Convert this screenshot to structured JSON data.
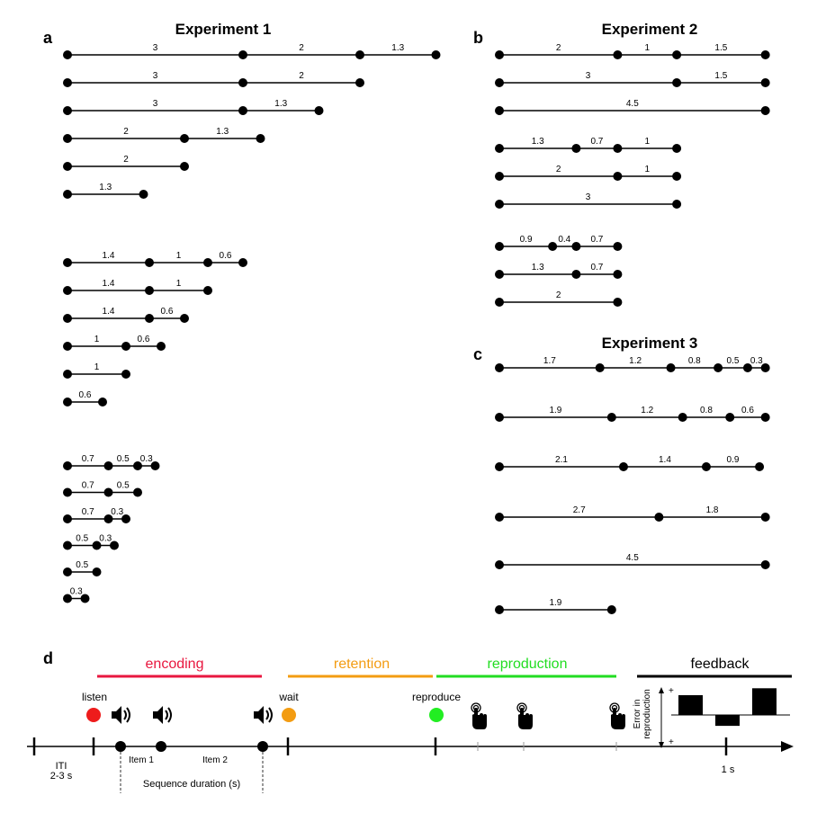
{
  "panels": {
    "a": {
      "letter": "a",
      "title": "Experiment 1",
      "x0": 75,
      "scale": 65,
      "groups": [
        [
          [
            3,
            2,
            1.3
          ],
          [
            3,
            2
          ],
          [
            3,
            1.3
          ],
          [
            2,
            1.3
          ],
          [
            2
          ],
          [
            1.3
          ]
        ],
        [
          [
            1.4,
            1,
            0.6
          ],
          [
            1.4,
            1
          ],
          [
            1.4,
            0.6
          ],
          [
            1,
            0.6
          ],
          [
            1
          ],
          [
            0.6
          ]
        ],
        [
          [
            0.7,
            0.5,
            0.3
          ],
          [
            0.7,
            0.5
          ],
          [
            0.7,
            0.3
          ],
          [
            0.5,
            0.3
          ],
          [
            0.5
          ],
          [
            0.3
          ]
        ]
      ]
    },
    "b": {
      "letter": "b",
      "title": "Experiment 2",
      "groups": [
        [
          [
            2,
            1,
            1.5
          ],
          [
            3,
            1.5
          ],
          [
            4.5
          ]
        ],
        [
          [
            1.3,
            0.7,
            1
          ],
          [
            2,
            1
          ],
          [
            3
          ]
        ],
        [
          [
            0.9,
            0.4,
            0.7
          ],
          [
            1.3,
            0.7
          ],
          [
            2
          ]
        ]
      ]
    },
    "c": {
      "letter": "c",
      "title": "Experiment 3",
      "sequences": [
        [
          1.7,
          1.2,
          0.8,
          0.5,
          0.3
        ],
        [
          1.9,
          1.2,
          0.8,
          0.6
        ],
        [
          2.1,
          1.4,
          0.9
        ],
        [
          2.7,
          1.8
        ],
        [
          4.5
        ],
        [
          1.9
        ]
      ]
    }
  },
  "timeline": {
    "letter": "d",
    "phases": {
      "encoding": "encoding",
      "retention": "retention",
      "reproduction": "reproduction",
      "feedback": "feedback"
    },
    "cues": {
      "listen": "listen",
      "wait": "wait",
      "reproduce": "reproduce"
    },
    "labels": {
      "iti_line1": "ITI",
      "iti_line2": "2-3 s",
      "item1": "Item 1",
      "item2": "Item 2",
      "sequence_duration": "Sequence duration (s)",
      "one_second": "1 s",
      "error_line1": "Error in",
      "error_line2": "reproduction",
      "plus_top": "+",
      "plus_bottom": "+"
    },
    "colors": {
      "encoding": "#e8173f",
      "retention": "#f39c12",
      "reproduction": "#22dd22",
      "feedback": "#000000",
      "listen_dot": "#ee1c1c",
      "wait_dot": "#f39c12",
      "reproduce_dot": "#22ee22"
    },
    "icons": {
      "speaker": "speaker-icon",
      "tap": "tap-hand-icon"
    },
    "feedback_errors": [
      1,
      -0.55,
      1.35
    ]
  }
}
